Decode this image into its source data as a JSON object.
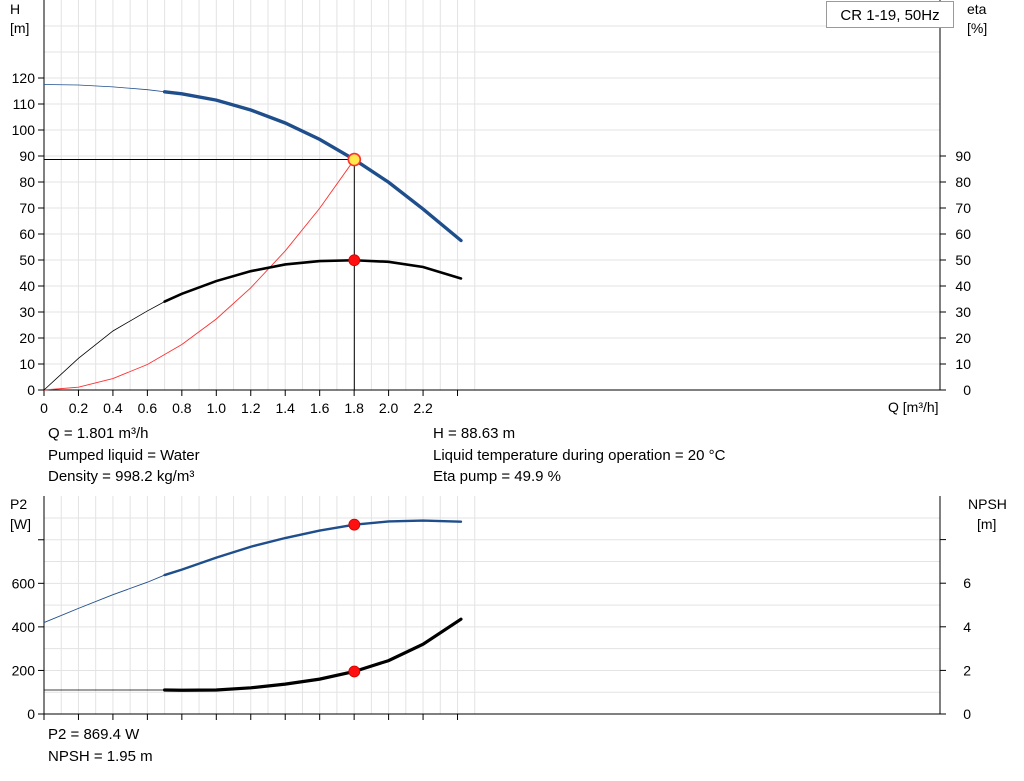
{
  "model": "CR 1-19, 50Hz",
  "info": {
    "q": "Q = 1.801 m³/h",
    "liquid": "Pumped liquid = Water",
    "density": "Density = 998.2 kg/m³",
    "h": "H = 88.63 m",
    "temp": "Liquid temperature during operation = 20 °C",
    "eta": "Eta pump = 49.9 %",
    "p2": "P2 = 869.4 W",
    "npsh": "NPSH = 1.95 m"
  },
  "chart_data": [
    {
      "type": "line",
      "title": "",
      "xlabel": "Q [m³/h]",
      "ylabel": "H\n[m]",
      "y2label": "eta\n[%]",
      "xlim": [
        0,
        2.6
      ],
      "ylim": [
        0,
        120
      ],
      "y2lim": [
        0,
        90
      ],
      "x_ticks": [
        "0",
        "0.2",
        "0.4",
        "0.6",
        "0.8",
        "1.0",
        "1.2",
        "1.4",
        "1.6",
        "1.8",
        "2.0",
        "2.2"
      ],
      "y_ticks": [
        "0",
        "10",
        "20",
        "30",
        "40",
        "50",
        "60",
        "70",
        "80",
        "90",
        "100",
        "110",
        "120"
      ],
      "y2_ticks": [
        "0",
        "10",
        "20",
        "30",
        "40",
        "50",
        "60",
        "70",
        "80",
        "90"
      ],
      "grid": true,
      "series": [
        {
          "axis": "left",
          "color": "#1f4e8c",
          "x": [
            0.0,
            0.2,
            0.4,
            0.6,
            0.7,
            0.8,
            1.0,
            1.2,
            1.4,
            1.6,
            1.801,
            2.0,
            2.2,
            2.42
          ],
          "values": [
            117.5,
            117.3,
            116.6,
            115.5,
            114.7,
            113.9,
            111.5,
            107.7,
            102.7,
            96.4,
            88.63,
            79.9,
            69.6,
            57.5
          ],
          "recommended_from": 0.7
        },
        {
          "axis": "right",
          "color": "#000000",
          "x": [
            0.0,
            0.2,
            0.4,
            0.6,
            0.7,
            0.8,
            1.0,
            1.2,
            1.4,
            1.6,
            1.801,
            2.0,
            2.2,
            2.42
          ],
          "values": [
            0,
            12.2,
            22.7,
            30.4,
            34.0,
            37.0,
            41.9,
            45.7,
            48.3,
            49.6,
            49.9,
            49.3,
            47.3,
            42.9
          ],
          "recommended_from": 0.7
        },
        {
          "axis": "left",
          "color": "#ff3030",
          "system_curve": true,
          "x": [
            0.0,
            0.2,
            0.4,
            0.6,
            0.8,
            1.0,
            1.2,
            1.4,
            1.6,
            1.801
          ],
          "values": [
            0,
            1.1,
            4.4,
            9.8,
            17.5,
            27.3,
            39.3,
            53.5,
            69.9,
            88.63
          ]
        }
      ],
      "duty_point": {
        "x": 1.801,
        "h": 88.63,
        "eta": 49.9
      }
    },
    {
      "type": "line",
      "title": "",
      "xlabel": "",
      "ylabel": "P2\n[W]",
      "y2label": "NPSH\n[m]",
      "xlim": [
        0,
        2.6
      ],
      "ylim": [
        0,
        800
      ],
      "y2lim": [
        0,
        8
      ],
      "y_ticks": [
        "0",
        "200",
        "400",
        "600"
      ],
      "y2_ticks": [
        "0",
        "2",
        "4",
        "6"
      ],
      "grid": true,
      "series": [
        {
          "axis": "left",
          "color": "#1f4e8c",
          "x": [
            0.0,
            0.2,
            0.4,
            0.6,
            0.7,
            0.8,
            1.0,
            1.2,
            1.4,
            1.6,
            1.801,
            2.0,
            2.2,
            2.42
          ],
          "values": [
            420,
            485,
            548,
            605,
            638,
            663,
            718,
            768,
            808,
            842,
            869.4,
            884,
            888,
            883
          ],
          "recommended_from": 0.7
        },
        {
          "axis": "right",
          "color": "#000000",
          "x": [
            0.0,
            0.2,
            0.4,
            0.5,
            0.7,
            0.8,
            1.0,
            1.2,
            1.4,
            1.6,
            1.801,
            2.0,
            2.2,
            2.42
          ],
          "values": [
            1.1,
            1.1,
            1.1,
            1.1,
            1.1,
            1.09,
            1.1,
            1.2,
            1.37,
            1.6,
            1.95,
            2.45,
            3.2,
            4.35
          ],
          "recommended_from": 0.7
        }
      ],
      "duty_point": {
        "x": 1.801,
        "p2": 869.4,
        "npsh": 1.95
      }
    }
  ]
}
